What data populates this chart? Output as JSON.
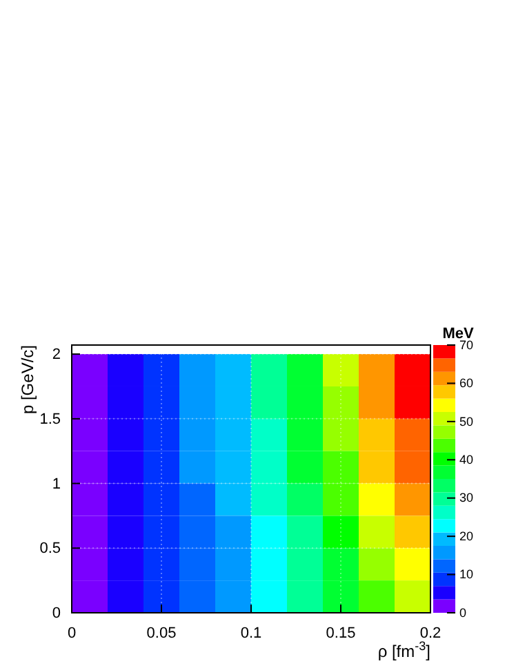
{
  "chart_data": {
    "type": "heatmap",
    "xlabel": "ρ [fm$^{-3}$]",
    "ylabel": "p [GeV/c]",
    "clabel": "MeV",
    "x": [
      0.01,
      0.03,
      0.05,
      0.07,
      0.09,
      0.11,
      0.13,
      0.15,
      0.17,
      0.19
    ],
    "y": [
      1.875,
      1.625,
      1.375,
      1.125,
      0.875,
      0.625,
      0.375,
      0.125
    ],
    "cells": [
      [
        1,
        4,
        9,
        14,
        20,
        28,
        38,
        50,
        62,
        69
      ],
      [
        1,
        4,
        9,
        14,
        20,
        28,
        37,
        48,
        60,
        68
      ],
      [
        1,
        4,
        9,
        14,
        20,
        27,
        36,
        47,
        58,
        66
      ],
      [
        1,
        4,
        9,
        14,
        19,
        26,
        35,
        45,
        56,
        63
      ],
      [
        1,
        4,
        9,
        13,
        18,
        25,
        33,
        43,
        53,
        60
      ],
      [
        1,
        4,
        8,
        12,
        17,
        23,
        31,
        40,
        50,
        56
      ],
      [
        1,
        4,
        7,
        11,
        16,
        22,
        29,
        37,
        46,
        53
      ],
      [
        1,
        4,
        7,
        11,
        15,
        21,
        28,
        35,
        44,
        50
      ]
    ],
    "colors": [
      "#7a00ff",
      "#1a00ff",
      "#0033ff",
      "#0066ff",
      "#0099ff",
      "#00bbff",
      "#00ffff",
      "#00ffc8",
      "#00ff96",
      "#00ff64",
      "#00ff32",
      "#00ff00",
      "#4bff00",
      "#96ff00",
      "#c8ff00",
      "#ffff00",
      "#ffc800",
      "#ff9600",
      "#ff6400",
      "#ff0000"
    ],
    "clim": [
      0,
      70
    ],
    "cticks": [
      0,
      10,
      20,
      30,
      40,
      50,
      60,
      70
    ],
    "xlim": [
      0,
      0.2
    ],
    "xticks": [
      0,
      0.05,
      0.1,
      0.15,
      0.2
    ],
    "ylim": [
      0,
      2.07
    ],
    "yticks": [
      0,
      0.5,
      1,
      1.5,
      2
    ],
    "grid": true
  }
}
